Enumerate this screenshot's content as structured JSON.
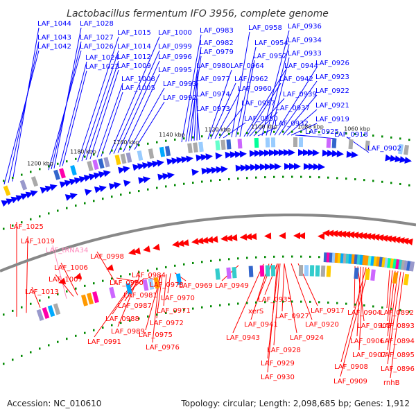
{
  "title": "Lactobacillus fermentum IFO 3956, complete genome",
  "footer": {
    "accession": "Accession: NC_010610",
    "summary": "Topology: circular; Length: 2,098,685 bp; Genes: 1,912"
  },
  "colors": {
    "forward": "#0000ff",
    "reverse": "#ff0000",
    "rna": "#ff88bb",
    "backbone": "#888888",
    "tick": "#008800"
  },
  "kbp_marks": [
    "1200 kbp",
    "1180 kbp",
    "1160 kbp",
    "1140 kbp",
    "1120 kbp",
    "1100 kbp",
    "1080 kbp",
    "1060 kbp"
  ],
  "top_labels": [
    "LAF_1044",
    "LAF_1043",
    "LAF_1042",
    "LAF_1028",
    "LAF_1027",
    "LAF_1026",
    "LAF_1024",
    "LAF_1022",
    "LAF_1015",
    "LAF_1014",
    "LAF_1012",
    "LAF_1009",
    "LAF_1008",
    "LAF_1005",
    "LAF_1000",
    "LAF_0999",
    "LAF_0996",
    "LAF_0995",
    "LAF_0993",
    "LAF_0992",
    "LAF_0983",
    "LAF_0982",
    "LAF_0979",
    "LAF_0980",
    "LAF_0977",
    "LAF_0974",
    "LAF_0973",
    "LAF_0964",
    "LAF_0962",
    "LAF_0960",
    "LAF_0957",
    "LAF_0950",
    "LAF_0958",
    "LAF_0954",
    "LAF_0952",
    "LAF_0944",
    "LAF_0942",
    "LAF_0939",
    "LAF_0937",
    "LAF_0932",
    "LAF_0936",
    "LAF_0934",
    "LAF_0933",
    "LAF_0926",
    "LAF_0923",
    "LAF_0922",
    "LAF_0921",
    "LAF_0919",
    "LAF_0925",
    "LAF_0918",
    "LAF_0902"
  ],
  "bottom_labels": [
    "LAF_1025",
    "LAF_1019",
    "LAF_tRNA34",
    "LAF_1006",
    "LAF_1007",
    "LAF_1013",
    "LAF_0998",
    "LAF_0984",
    "LAF_0990",
    "LAF_0978",
    "LAF_0969",
    "LAF_0981",
    "LAF_0970",
    "LAF_0987",
    "LAF_0971",
    "LAF_0988",
    "LAF_0972",
    "LAF_0989",
    "LAF_0975",
    "LAF_0991",
    "LAF_0976",
    "LAF_0949",
    "xerS",
    "LAF_0941",
    "LAF_0943",
    "LAF_0935",
    "LAF_0927",
    "LAF_0920",
    "LAF_0917",
    "LAF_0924",
    "LAF_0928",
    "LAF_0929",
    "LAF_0930",
    "LAF_0904",
    "LAF_0905",
    "LAF_0906",
    "LAF_0907",
    "LAF_0908",
    "LAF_0909",
    "LAF_0892",
    "LAF_0893",
    "LAF_0894",
    "LAF_0895",
    "LAF_0896",
    "rnhB"
  ]
}
